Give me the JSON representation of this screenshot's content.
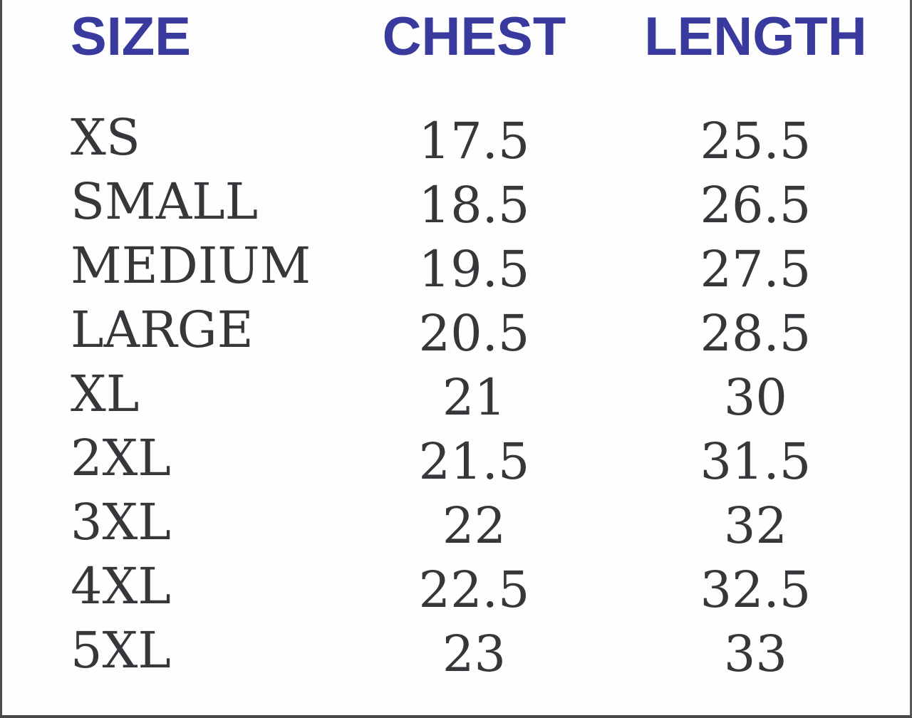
{
  "chart_data": {
    "type": "table",
    "columns": [
      "SIZE",
      "CHEST",
      "LENGTH"
    ],
    "rows": [
      {
        "size": "XS",
        "chest": "17.5",
        "length": "25.5"
      },
      {
        "size": "SMALL",
        "chest": "18.5",
        "length": "26.5"
      },
      {
        "size": "MEDIUM",
        "chest": "19.5",
        "length": "27.5"
      },
      {
        "size": "LARGE",
        "chest": "20.5",
        "length": "28.5"
      },
      {
        "size": "XL",
        "chest": "21",
        "length": "30"
      },
      {
        "size": "2XL",
        "chest": "21.5",
        "length": "31.5"
      },
      {
        "size": "3XL",
        "chest": "22",
        "length": "32"
      },
      {
        "size": "4XL",
        "chest": "22.5",
        "length": "32.5"
      },
      {
        "size": "5XL",
        "chest": "23",
        "length": "33"
      }
    ],
    "layout_hints": {
      "header_align": [
        "left",
        "center",
        "center"
      ],
      "body_align": [
        "left",
        "center",
        "center"
      ],
      "grid": "off"
    },
    "colors": {
      "header_text": "#383b9d",
      "body_text": "#35373a",
      "border": "#58585b",
      "background": "#ffffff"
    }
  }
}
